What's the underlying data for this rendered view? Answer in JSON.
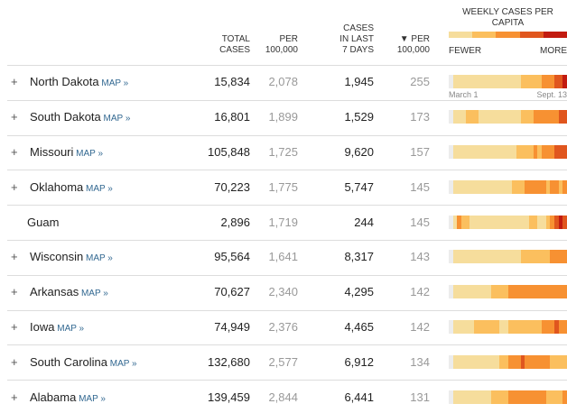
{
  "header": {
    "total_cases": [
      "TOTAL",
      "CASES"
    ],
    "per_100k": [
      "PER",
      "100,000"
    ],
    "cases_7d": [
      "CASES",
      "IN LAST",
      "7 DAYS"
    ],
    "per_100k_7d": [
      "▼ PER",
      "100,000"
    ],
    "weekly": [
      "WEEKLY CASES PER",
      "CAPITA"
    ],
    "fewer": "FEWER",
    "more": "MORE"
  },
  "level_colors": [
    "#ececec",
    "#f6dd9c",
    "#fbbf5e",
    "#f79132",
    "#e0561e",
    "#c21b10"
  ],
  "axis": {
    "start": "March 1",
    "end": "Sept. 13"
  },
  "rows": [
    {
      "expand": "+",
      "name": "North Dakota",
      "map": "MAP »",
      "total": "15,834",
      "per_100k": "2,078",
      "cases_7d": "1,945",
      "per_100k_7d": "255",
      "weekly": [
        0,
        1,
        1,
        1,
        1,
        1,
        1,
        1,
        1,
        1,
        1,
        1,
        1,
        1,
        1,
        1,
        1,
        2,
        2,
        2,
        2,
        2,
        3,
        3,
        3,
        4,
        4,
        5
      ]
    },
    {
      "expand": "+",
      "name": "South Dakota",
      "map": "MAP »",
      "total": "16,801",
      "per_100k": "1,899",
      "cases_7d": "1,529",
      "per_100k_7d": "173",
      "weekly": [
        0,
        1,
        1,
        1,
        2,
        2,
        2,
        1,
        1,
        1,
        1,
        1,
        1,
        1,
        1,
        1,
        1,
        2,
        2,
        2,
        3,
        3,
        3,
        3,
        3,
        3,
        4,
        4
      ]
    },
    {
      "expand": "+",
      "name": "Missouri",
      "map": "MAP »",
      "total": "105,848",
      "per_100k": "1,725",
      "cases_7d": "9,620",
      "per_100k_7d": "157",
      "weekly": [
        0,
        1,
        1,
        1,
        1,
        1,
        1,
        1,
        1,
        1,
        1,
        1,
        1,
        1,
        1,
        1,
        2,
        2,
        2,
        2,
        3,
        2,
        3,
        3,
        3,
        4,
        4,
        4
      ]
    },
    {
      "expand": "+",
      "name": "Oklahoma",
      "map": "MAP »",
      "total": "70,223",
      "per_100k": "1,775",
      "cases_7d": "5,747",
      "per_100k_7d": "145",
      "weekly": [
        0,
        1,
        1,
        1,
        1,
        1,
        1,
        1,
        1,
        1,
        1,
        1,
        1,
        1,
        1,
        2,
        2,
        2,
        3,
        3,
        3,
        3,
        3,
        2,
        3,
        3,
        2,
        3
      ]
    },
    {
      "name": "Guam",
      "total": "2,896",
      "per_100k": "1,719",
      "cases_7d": "244",
      "per_100k_7d": "145",
      "weekly": [
        0,
        1,
        3,
        2,
        2,
        1,
        1,
        1,
        1,
        1,
        1,
        1,
        1,
        1,
        1,
        1,
        1,
        1,
        1,
        2,
        2,
        1,
        1,
        2,
        3,
        4,
        5,
        4
      ]
    },
    {
      "expand": "+",
      "name": "Wisconsin",
      "map": "MAP »",
      "total": "95,564",
      "per_100k": "1,641",
      "cases_7d": "8,317",
      "per_100k_7d": "143",
      "weekly": [
        0,
        1,
        1,
        1,
        1,
        1,
        1,
        1,
        1,
        1,
        1,
        1,
        1,
        1,
        1,
        1,
        1,
        2,
        2,
        2,
        2,
        2,
        2,
        2,
        3,
        3,
        3,
        3
      ]
    },
    {
      "expand": "+",
      "name": "Arkansas",
      "map": "MAP »",
      "total": "70,627",
      "per_100k": "2,340",
      "cases_7d": "4,295",
      "per_100k_7d": "142",
      "weekly": [
        0,
        1,
        1,
        1,
        1,
        1,
        1,
        1,
        1,
        1,
        2,
        2,
        2,
        2,
        3,
        3,
        3,
        3,
        3,
        3,
        3,
        3,
        3,
        3,
        3,
        3,
        3,
        3
      ]
    },
    {
      "expand": "+",
      "name": "Iowa",
      "map": "MAP »",
      "total": "74,949",
      "per_100k": "2,376",
      "cases_7d": "4,465",
      "per_100k_7d": "142",
      "weekly": [
        0,
        1,
        1,
        1,
        1,
        1,
        2,
        2,
        2,
        2,
        2,
        2,
        1,
        1,
        2,
        2,
        2,
        2,
        2,
        2,
        2,
        2,
        3,
        3,
        3,
        4,
        3,
        3
      ]
    },
    {
      "expand": "+",
      "name": "South Carolina",
      "map": "MAP »",
      "total": "132,680",
      "per_100k": "2,577",
      "cases_7d": "6,912",
      "per_100k_7d": "134",
      "weekly": [
        0,
        1,
        1,
        1,
        1,
        1,
        1,
        1,
        1,
        1,
        1,
        1,
        2,
        2,
        3,
        3,
        3,
        4,
        3,
        3,
        3,
        3,
        3,
        3,
        2,
        2,
        2,
        2
      ]
    },
    {
      "expand": "+",
      "name": "Alabama",
      "map": "MAP »",
      "total": "139,459",
      "per_100k": "2,844",
      "cases_7d": "6,441",
      "per_100k_7d": "131",
      "weekly": [
        0,
        1,
        1,
        1,
        1,
        1,
        1,
        1,
        1,
        1,
        2,
        2,
        2,
        2,
        3,
        3,
        3,
        3,
        3,
        3,
        3,
        3,
        3,
        2,
        2,
        2,
        2,
        3
      ]
    }
  ]
}
